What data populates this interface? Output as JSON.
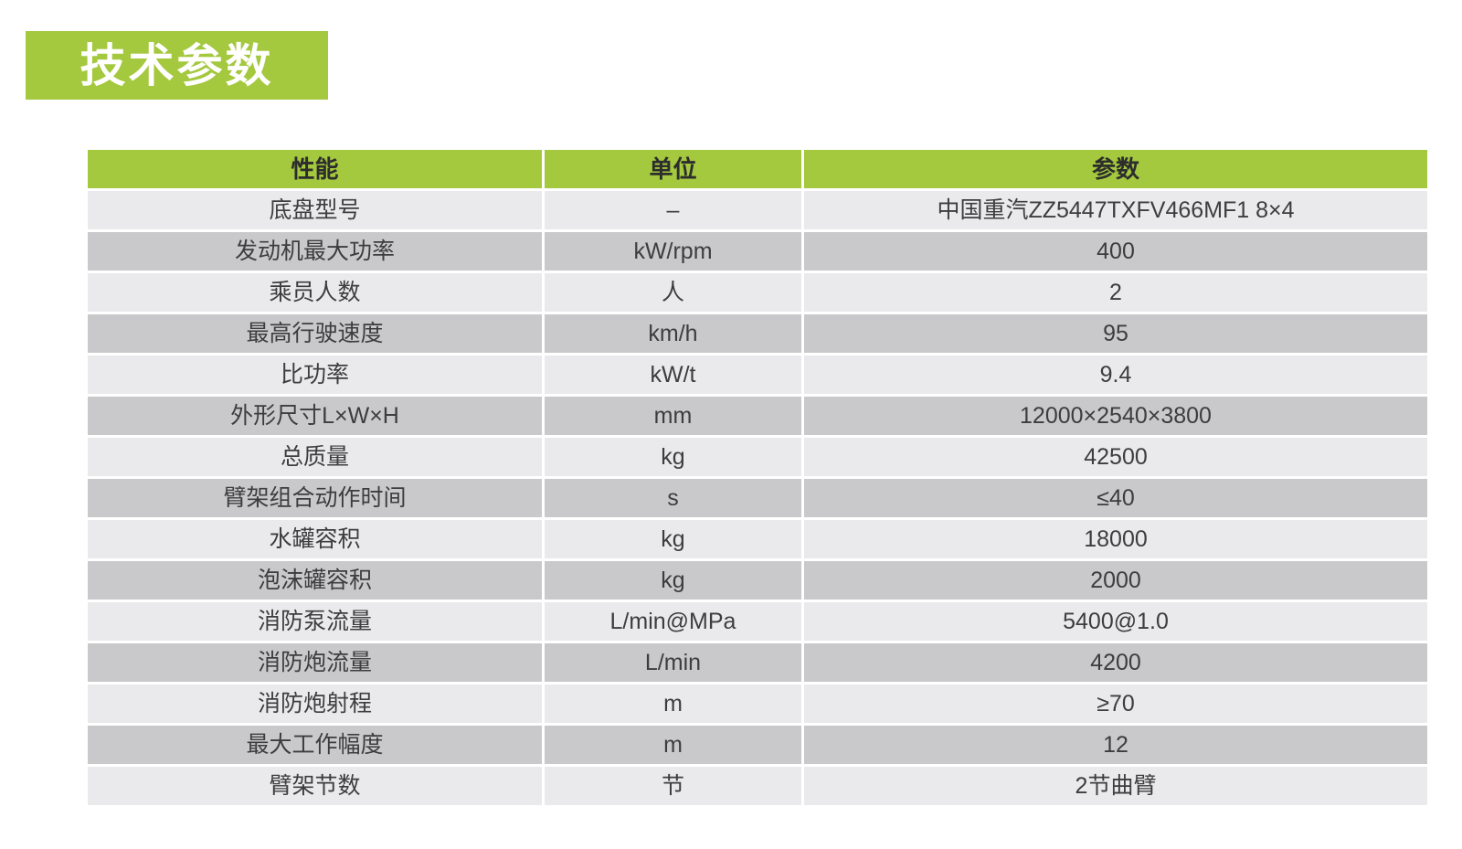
{
  "page": {
    "title": "技术参数"
  },
  "colors": {
    "green": "#a4c83e",
    "title_text": "#ffffff",
    "header_text": "#2d2d2d",
    "cell_text": "#3d3d3f",
    "row_light": "#eaeaec",
    "row_dark": "#c9c9cb",
    "background": "#ffffff"
  },
  "table": {
    "headers": [
      "性能",
      "单位",
      "参数"
    ],
    "rows": [
      [
        "底盘型号",
        "–",
        "中国重汽ZZ5447TXFV466MF1 8×4"
      ],
      [
        "发动机最大功率",
        "kW/rpm",
        "400"
      ],
      [
        "乘员人数",
        "人",
        "2"
      ],
      [
        "最高行驶速度",
        "km/h",
        "95"
      ],
      [
        "比功率",
        "kW/t",
        "9.4"
      ],
      [
        "外形尺寸L×W×H",
        "mm",
        "12000×2540×3800"
      ],
      [
        "总质量",
        "kg",
        "42500"
      ],
      [
        "臂架组合动作时间",
        "s",
        "≤40"
      ],
      [
        "水罐容积",
        "kg",
        "18000"
      ],
      [
        "泡沫罐容积",
        "kg",
        "2000"
      ],
      [
        "消防泵流量",
        "L/min@MPa",
        "5400@1.0"
      ],
      [
        "消防炮流量",
        "L/min",
        "4200"
      ],
      [
        "消防炮射程",
        "m",
        "≥70"
      ],
      [
        "最大工作幅度",
        "m",
        "12"
      ],
      [
        "臂架节数",
        "节",
        "2节曲臂"
      ]
    ]
  }
}
